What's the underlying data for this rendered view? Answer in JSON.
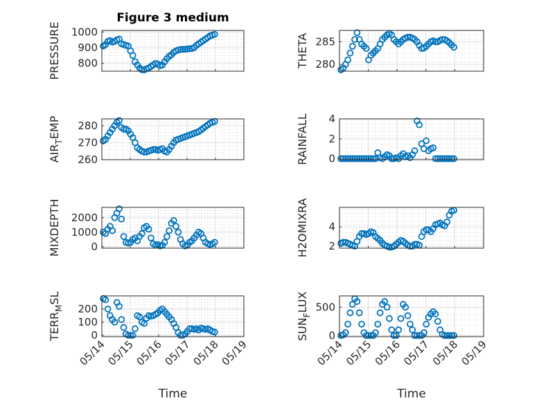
{
  "figure_title": "Figure 3 medium",
  "colors": {
    "marker": "#0072bd",
    "axes": "#262626",
    "grid": "#dfdfdf",
    "background": "#ffffff"
  },
  "x_axis": {
    "label": "Time",
    "range": [
      "05/14",
      "05/19"
    ],
    "ticks": [
      "05/14",
      "05/15",
      "05/16",
      "05/17",
      "05/18",
      "05/19"
    ]
  },
  "chart_data": [
    {
      "type": "scatter",
      "title": "Figure 3 medium",
      "ylabel": "PRESSURE",
      "xlabel": "",
      "ylim": [
        750,
        1010
      ],
      "yticks": [
        800,
        900,
        1000
      ],
      "grid": true,
      "x": [
        0.05,
        0.13,
        0.21,
        0.29,
        0.37,
        0.45,
        0.53,
        0.61,
        0.69,
        0.77,
        0.85,
        0.93,
        1.01,
        1.09,
        1.17,
        1.25,
        1.33,
        1.41,
        1.49,
        1.57,
        1.65,
        1.73,
        1.81,
        1.89,
        1.97,
        2.05,
        2.13,
        2.21,
        2.29,
        2.37,
        2.45,
        2.53,
        2.61,
        2.69,
        2.77,
        2.85,
        2.93,
        3.01,
        3.09,
        3.17,
        3.25,
        3.33,
        3.41,
        3.49,
        3.57,
        3.65,
        3.73,
        3.81,
        3.89,
        3.97
      ],
      "y": [
        910,
        920,
        940,
        945,
        935,
        940,
        950,
        955,
        925,
        920,
        915,
        910,
        880,
        850,
        810,
        790,
        770,
        760,
        758,
        765,
        770,
        780,
        790,
        800,
        795,
        785,
        790,
        810,
        830,
        845,
        855,
        870,
        880,
        885,
        888,
        890,
        890,
        892,
        893,
        895,
        900,
        915,
        925,
        935,
        945,
        955,
        965,
        975,
        980,
        985
      ]
    },
    {
      "type": "scatter",
      "ylabel": "THETA",
      "xlabel": "",
      "ylim": [
        278.5,
        287.5
      ],
      "yticks": [
        280,
        285
      ],
      "grid": true,
      "x": [
        0.05,
        0.13,
        0.21,
        0.29,
        0.37,
        0.45,
        0.53,
        0.61,
        0.69,
        0.77,
        0.85,
        0.93,
        1.01,
        1.09,
        1.17,
        1.25,
        1.33,
        1.41,
        1.49,
        1.57,
        1.65,
        1.73,
        1.81,
        1.89,
        1.97,
        2.05,
        2.13,
        2.21,
        2.29,
        2.37,
        2.45,
        2.53,
        2.61,
        2.69,
        2.77,
        2.85,
        2.93,
        3.01,
        3.09,
        3.17,
        3.25,
        3.33,
        3.41,
        3.49,
        3.57,
        3.65,
        3.73,
        3.81,
        3.89,
        3.97
      ],
      "y": [
        278.8,
        279.2,
        280.0,
        281.0,
        282.5,
        284.0,
        285.5,
        287.0,
        285.5,
        284.5,
        284.0,
        283.5,
        281.0,
        282.0,
        282.5,
        283.0,
        283.5,
        284.5,
        285.5,
        286.0,
        286.5,
        286.8,
        286.5,
        285.5,
        285.0,
        284.5,
        285.0,
        285.5,
        285.8,
        286.0,
        286.0,
        285.8,
        285.5,
        285.0,
        284.2,
        283.5,
        283.6,
        284.0,
        284.5,
        285.0,
        285.2,
        285.0,
        285.0,
        285.3,
        285.5,
        285.5,
        285.2,
        284.8,
        284.3,
        283.8
      ]
    },
    {
      "type": "scatter",
      "ylabel": "AIR_TEMP",
      "xlabel": "",
      "ylim": [
        260,
        284
      ],
      "yticks": [
        260,
        270,
        280
      ],
      "grid": true,
      "x": [
        0.05,
        0.13,
        0.21,
        0.29,
        0.37,
        0.45,
        0.53,
        0.61,
        0.69,
        0.77,
        0.85,
        0.93,
        1.01,
        1.09,
        1.17,
        1.25,
        1.33,
        1.41,
        1.49,
        1.57,
        1.65,
        1.73,
        1.81,
        1.89,
        1.97,
        2.05,
        2.13,
        2.21,
        2.29,
        2.37,
        2.45,
        2.53,
        2.61,
        2.69,
        2.77,
        2.85,
        2.93,
        3.01,
        3.09,
        3.17,
        3.25,
        3.33,
        3.41,
        3.49,
        3.57,
        3.65,
        3.73,
        3.81,
        3.89,
        3.97
      ],
      "y": [
        271,
        272,
        274,
        276,
        278,
        280,
        282,
        283,
        279,
        278,
        278,
        277,
        275,
        273,
        270,
        267,
        266,
        265,
        264.5,
        264.5,
        265,
        265.5,
        266,
        266,
        265.5,
        266,
        266.5,
        265,
        264.5,
        266,
        268,
        270,
        271.5,
        272,
        272.5,
        273,
        273.5,
        274,
        274.5,
        275,
        275.5,
        276,
        276.5,
        277.5,
        278.5,
        279.5,
        280.5,
        281.5,
        282,
        282.5
      ]
    },
    {
      "type": "scatter",
      "ylabel": "RAINFALL",
      "xlabel": "",
      "ylim": [
        -0.1,
        4
      ],
      "yticks": [
        0,
        2,
        4
      ],
      "grid": true,
      "x": [
        0.05,
        0.13,
        0.21,
        0.29,
        0.37,
        0.45,
        0.53,
        0.61,
        0.69,
        0.77,
        0.85,
        0.93,
        1.01,
        1.09,
        1.17,
        1.25,
        1.33,
        1.41,
        1.49,
        1.57,
        1.65,
        1.73,
        1.81,
        1.89,
        1.97,
        2.05,
        2.13,
        2.21,
        2.29,
        2.37,
        2.45,
        2.53,
        2.61,
        2.69,
        2.77,
        2.85,
        2.93,
        3.01,
        3.09,
        3.17,
        3.25,
        3.33,
        3.41,
        3.49,
        3.57,
        3.65,
        3.73,
        3.81,
        3.89,
        3.97
      ],
      "y": [
        0,
        0,
        0,
        0,
        0,
        0,
        0,
        0,
        0,
        0,
        0,
        0,
        0,
        0,
        0,
        0,
        0.6,
        0.1,
        0,
        0.2,
        0.4,
        0.3,
        0,
        0,
        0.1,
        0,
        0.3,
        0.5,
        0.2,
        0.3,
        0.1,
        0.4,
        0.8,
        3.8,
        3.4,
        1.5,
        1.0,
        1.8,
        0.8,
        1.0,
        1.1,
        0,
        0,
        0,
        0,
        0,
        0,
        0,
        0,
        0
      ]
    },
    {
      "type": "scatter",
      "ylabel": "MIXDEPTH",
      "xlabel": "",
      "ylim": [
        -100,
        2700
      ],
      "yticks": [
        0,
        1000,
        2000
      ],
      "grid": true,
      "x": [
        0.05,
        0.13,
        0.21,
        0.29,
        0.37,
        0.45,
        0.53,
        0.61,
        0.69,
        0.77,
        0.85,
        0.93,
        1.01,
        1.09,
        1.17,
        1.25,
        1.33,
        1.41,
        1.49,
        1.57,
        1.65,
        1.73,
        1.81,
        1.89,
        1.97,
        2.05,
        2.13,
        2.21,
        2.29,
        2.37,
        2.45,
        2.53,
        2.61,
        2.69,
        2.77,
        2.85,
        2.93,
        3.01,
        3.09,
        3.17,
        3.25,
        3.33,
        3.41,
        3.49,
        3.57,
        3.65,
        3.73,
        3.81,
        3.89,
        3.97
      ],
      "y": [
        1000,
        900,
        1200,
        1400,
        1100,
        2000,
        2300,
        2600,
        1900,
        700,
        300,
        250,
        300,
        500,
        600,
        400,
        700,
        900,
        1300,
        1400,
        1200,
        600,
        200,
        100,
        150,
        50,
        100,
        300,
        700,
        1100,
        1600,
        1800,
        1400,
        1000,
        500,
        200,
        50,
        100,
        300,
        400,
        600,
        800,
        1000,
        900,
        600,
        300,
        200,
        150,
        200,
        300
      ]
    },
    {
      "type": "scatter",
      "ylabel": "H2OMIXRA",
      "xlabel": "",
      "ylim": [
        1.8,
        6
      ],
      "yticks": [
        2,
        4
      ],
      "grid": true,
      "x": [
        0.05,
        0.13,
        0.21,
        0.29,
        0.37,
        0.45,
        0.53,
        0.61,
        0.69,
        0.77,
        0.85,
        0.93,
        1.01,
        1.09,
        1.17,
        1.25,
        1.33,
        1.41,
        1.49,
        1.57,
        1.65,
        1.73,
        1.81,
        1.89,
        1.97,
        2.05,
        2.13,
        2.21,
        2.29,
        2.37,
        2.45,
        2.53,
        2.61,
        2.69,
        2.77,
        2.85,
        2.93,
        3.01,
        3.09,
        3.17,
        3.25,
        3.33,
        3.41,
        3.49,
        3.57,
        3.65,
        3.73,
        3.81,
        3.89,
        3.97
      ],
      "y": [
        2.3,
        2.4,
        2.4,
        2.3,
        2.2,
        2.1,
        2.0,
        2.5,
        3.0,
        3.3,
        3.3,
        3.2,
        3.3,
        3.5,
        3.4,
        3.0,
        2.8,
        2.6,
        2.3,
        2.1,
        2.0,
        1.9,
        1.9,
        2.0,
        2.2,
        2.4,
        2.6,
        2.5,
        2.3,
        2.1,
        2.0,
        2.0,
        2.2,
        2.2,
        2.1,
        3.0,
        3.5,
        3.7,
        3.7,
        3.5,
        3.8,
        4.2,
        4.3,
        4.4,
        4.2,
        4.1,
        4.5,
        5.2,
        5.6,
        5.7
      ]
    },
    {
      "type": "scatter",
      "ylabel": "TERR_MSL",
      "xlabel": "Time",
      "ylim": [
        -10,
        300
      ],
      "yticks": [
        0,
        100,
        200
      ],
      "grid": true,
      "x": [
        0.05,
        0.13,
        0.21,
        0.29,
        0.37,
        0.45,
        0.53,
        0.61,
        0.69,
        0.77,
        0.85,
        0.93,
        1.01,
        1.09,
        1.17,
        1.25,
        1.33,
        1.41,
        1.49,
        1.57,
        1.65,
        1.73,
        1.81,
        1.89,
        1.97,
        2.05,
        2.13,
        2.21,
        2.29,
        2.37,
        2.45,
        2.53,
        2.61,
        2.69,
        2.77,
        2.85,
        2.93,
        3.01,
        3.09,
        3.17,
        3.25,
        3.33,
        3.41,
        3.49,
        3.57,
        3.65,
        3.73,
        3.81,
        3.89,
        3.97
      ],
      "y": [
        280,
        270,
        200,
        150,
        120,
        100,
        250,
        220,
        120,
        60,
        10,
        0,
        0,
        0,
        50,
        150,
        140,
        100,
        90,
        130,
        150,
        145,
        150,
        160,
        170,
        190,
        200,
        180,
        160,
        140,
        120,
        90,
        60,
        20,
        0,
        0,
        10,
        30,
        50,
        50,
        45,
        50,
        40,
        55,
        50,
        45,
        50,
        40,
        30,
        25
      ]
    },
    {
      "type": "scatter",
      "ylabel": "SUN_FLUX",
      "xlabel": "Time",
      "ylim": [
        -20,
        700
      ],
      "yticks": [
        0,
        500
      ],
      "grid": true,
      "x": [
        0.05,
        0.13,
        0.21,
        0.29,
        0.37,
        0.45,
        0.53,
        0.61,
        0.69,
        0.77,
        0.85,
        0.93,
        1.01,
        1.09,
        1.17,
        1.25,
        1.33,
        1.41,
        1.49,
        1.57,
        1.65,
        1.73,
        1.81,
        1.89,
        1.97,
        2.05,
        2.13,
        2.21,
        2.29,
        2.37,
        2.45,
        2.53,
        2.61,
        2.69,
        2.77,
        2.85,
        2.93,
        3.01,
        3.09,
        3.17,
        3.25,
        3.33,
        3.41,
        3.49,
        3.57,
        3.65,
        3.73,
        3.81,
        3.89,
        3.97
      ],
      "y": [
        0,
        10,
        50,
        200,
        400,
        550,
        650,
        600,
        400,
        200,
        50,
        0,
        0,
        0,
        0,
        50,
        200,
        400,
        550,
        600,
        500,
        300,
        100,
        0,
        0,
        100,
        300,
        550,
        500,
        350,
        200,
        100,
        0,
        0,
        0,
        0,
        50,
        200,
        320,
        380,
        420,
        380,
        250,
        100,
        20,
        0,
        0,
        0,
        0,
        0
      ]
    }
  ]
}
